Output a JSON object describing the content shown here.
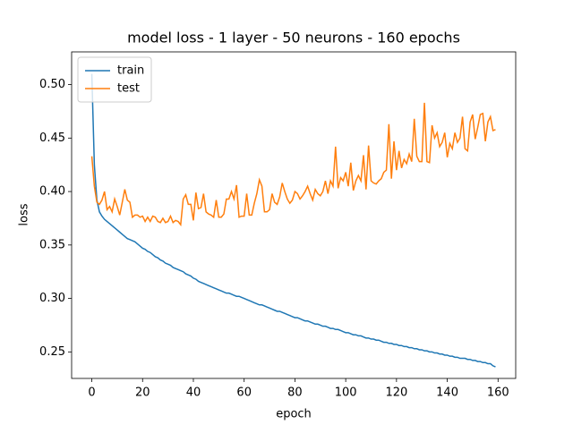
{
  "chart_data": {
    "type": "line",
    "title": "model loss - 1 layer - 50 neurons - 160 epochs",
    "x_label": "epoch",
    "y_label": "loss",
    "x": [
      0,
      1,
      2,
      3,
      4,
      5,
      6,
      7,
      8,
      9,
      10,
      11,
      12,
      13,
      14,
      15,
      16,
      17,
      18,
      19,
      20,
      21,
      22,
      23,
      24,
      25,
      26,
      27,
      28,
      29,
      30,
      31,
      32,
      33,
      34,
      35,
      36,
      37,
      38,
      39,
      40,
      41,
      42,
      43,
      44,
      45,
      46,
      47,
      48,
      49,
      50,
      51,
      52,
      53,
      54,
      55,
      56,
      57,
      58,
      59,
      60,
      61,
      62,
      63,
      64,
      65,
      66,
      67,
      68,
      69,
      70,
      71,
      72,
      73,
      74,
      75,
      76,
      77,
      78,
      79,
      80,
      81,
      82,
      83,
      84,
      85,
      86,
      87,
      88,
      89,
      90,
      91,
      92,
      93,
      94,
      95,
      96,
      97,
      98,
      99,
      100,
      101,
      102,
      103,
      104,
      105,
      106,
      107,
      108,
      109,
      110,
      111,
      112,
      113,
      114,
      115,
      116,
      117,
      118,
      119,
      120,
      121,
      122,
      123,
      124,
      125,
      126,
      127,
      128,
      129,
      130,
      131,
      132,
      133,
      134,
      135,
      136,
      137,
      138,
      139,
      140,
      141,
      142,
      143,
      144,
      145,
      146,
      147,
      148,
      149,
      150,
      151,
      152,
      153,
      154,
      155,
      156,
      157,
      158,
      159
    ],
    "series": [
      {
        "name": "train",
        "color": "#1f77b4",
        "values": [
          0.51,
          0.425,
          0.392,
          0.381,
          0.377,
          0.374,
          0.372,
          0.37,
          0.368,
          0.366,
          0.364,
          0.362,
          0.36,
          0.358,
          0.356,
          0.355,
          0.354,
          0.353,
          0.351,
          0.349,
          0.347,
          0.346,
          0.344,
          0.343,
          0.341,
          0.339,
          0.338,
          0.336,
          0.335,
          0.333,
          0.332,
          0.331,
          0.329,
          0.328,
          0.327,
          0.326,
          0.325,
          0.323,
          0.322,
          0.321,
          0.319,
          0.318,
          0.316,
          0.315,
          0.314,
          0.313,
          0.312,
          0.311,
          0.31,
          0.309,
          0.308,
          0.307,
          0.306,
          0.305,
          0.305,
          0.304,
          0.303,
          0.302,
          0.302,
          0.301,
          0.3,
          0.299,
          0.298,
          0.297,
          0.296,
          0.295,
          0.294,
          0.294,
          0.293,
          0.292,
          0.291,
          0.29,
          0.289,
          0.288,
          0.288,
          0.287,
          0.286,
          0.285,
          0.284,
          0.283,
          0.282,
          0.282,
          0.281,
          0.28,
          0.279,
          0.279,
          0.278,
          0.277,
          0.276,
          0.276,
          0.275,
          0.274,
          0.274,
          0.273,
          0.272,
          0.272,
          0.271,
          0.271,
          0.27,
          0.269,
          0.268,
          0.268,
          0.267,
          0.266,
          0.266,
          0.265,
          0.265,
          0.264,
          0.263,
          0.263,
          0.262,
          0.262,
          0.261,
          0.261,
          0.26,
          0.259,
          0.259,
          0.258,
          0.258,
          0.257,
          0.257,
          0.256,
          0.256,
          0.255,
          0.255,
          0.254,
          0.254,
          0.253,
          0.253,
          0.252,
          0.252,
          0.251,
          0.251,
          0.25,
          0.25,
          0.249,
          0.249,
          0.248,
          0.248,
          0.247,
          0.247,
          0.246,
          0.246,
          0.245,
          0.245,
          0.244,
          0.244,
          0.244,
          0.243,
          0.243,
          0.242,
          0.242,
          0.241,
          0.241,
          0.24,
          0.24,
          0.239,
          0.239,
          0.237,
          0.236
        ]
      },
      {
        "name": "test",
        "color": "#ff7f0e",
        "values": [
          0.433,
          0.405,
          0.39,
          0.388,
          0.392,
          0.4,
          0.383,
          0.386,
          0.381,
          0.393,
          0.386,
          0.378,
          0.39,
          0.402,
          0.392,
          0.39,
          0.376,
          0.378,
          0.378,
          0.376,
          0.377,
          0.372,
          0.376,
          0.372,
          0.377,
          0.376,
          0.372,
          0.371,
          0.375,
          0.371,
          0.372,
          0.377,
          0.371,
          0.373,
          0.372,
          0.369,
          0.393,
          0.397,
          0.388,
          0.388,
          0.373,
          0.399,
          0.384,
          0.385,
          0.398,
          0.381,
          0.379,
          0.378,
          0.376,
          0.392,
          0.376,
          0.376,
          0.379,
          0.393,
          0.393,
          0.4,
          0.393,
          0.406,
          0.376,
          0.377,
          0.377,
          0.398,
          0.378,
          0.378,
          0.389,
          0.398,
          0.411,
          0.405,
          0.381,
          0.381,
          0.383,
          0.398,
          0.39,
          0.388,
          0.395,
          0.408,
          0.4,
          0.393,
          0.389,
          0.392,
          0.4,
          0.398,
          0.393,
          0.396,
          0.4,
          0.405,
          0.398,
          0.392,
          0.402,
          0.398,
          0.396,
          0.4,
          0.41,
          0.398,
          0.41,
          0.405,
          0.442,
          0.403,
          0.413,
          0.41,
          0.418,
          0.405,
          0.427,
          0.401,
          0.41,
          0.415,
          0.41,
          0.434,
          0.402,
          0.443,
          0.41,
          0.408,
          0.407,
          0.41,
          0.412,
          0.418,
          0.42,
          0.463,
          0.412,
          0.447,
          0.42,
          0.438,
          0.422,
          0.43,
          0.426,
          0.435,
          0.428,
          0.468,
          0.433,
          0.428,
          0.428,
          0.483,
          0.428,
          0.427,
          0.462,
          0.45,
          0.455,
          0.442,
          0.446,
          0.455,
          0.432,
          0.445,
          0.44,
          0.455,
          0.446,
          0.45,
          0.47,
          0.44,
          0.438,
          0.465,
          0.472,
          0.449,
          0.46,
          0.472,
          0.473,
          0.447,
          0.465,
          0.47,
          0.457,
          0.458
        ]
      }
    ],
    "xlim": [
      -7.95,
      166.95
    ],
    "xticks": [
      0,
      20,
      40,
      60,
      80,
      100,
      120,
      140,
      160
    ],
    "ylim": [
      0.2252,
      0.5306
    ],
    "yticks": [
      0.25,
      {
        "value": 0.3,
        "label": "0.30"
      },
      0.35,
      {
        "value": 0.4,
        "label": "0.40"
      },
      0.45,
      {
        "value": 0.5,
        "label": "0.50"
      }
    ],
    "grid": false,
    "legend": "upper left"
  }
}
